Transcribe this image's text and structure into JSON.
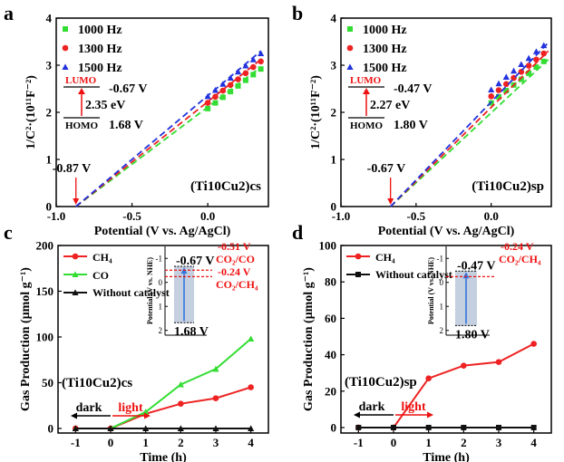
{
  "colors": {
    "f1000": "#33dd33",
    "f1300": "#ee2222",
    "f1500": "#2233dd",
    "ch4": "#ee2222",
    "co": "#33dd33",
    "nocat": "#111111",
    "inset_fill": "#c4cfe0",
    "inset_arrow": "#3377dd",
    "annot_red": "#ee1111",
    "lumo_red": "#ee1111",
    "dark_arrow": "#000000",
    "light_arrow": "#ee1111"
  },
  "chart_data": [
    {
      "panel": "a",
      "type": "scatter",
      "xlabel": "Potential (V vs. Ag/AgCl)",
      "ylabel": "1/C²·(10¹¹F⁻²)",
      "xlim": [
        -1.0,
        0.4
      ],
      "ylim": [
        0,
        4
      ],
      "xticks": [
        "-1.0",
        "-0.5",
        "0.0"
      ],
      "yticks": [
        "0",
        "1",
        "2",
        "3",
        "4"
      ],
      "legend": [
        "1000 Hz",
        "1300 Hz",
        "1500 Hz"
      ],
      "legend_position": "top-left",
      "sample": "(Ti10Cu2)cs",
      "flatband": {
        "label": "-0.87 V",
        "x": -0.87
      },
      "energy": {
        "lumo": "LUMO",
        "lumo_v": "-0.67 V",
        "gap": "2.35 eV",
        "homo": "HOMO",
        "homo_v": "1.68 V"
      },
      "series": [
        {
          "name": "1000 Hz",
          "fit": [
            [
              -0.87,
              0
            ],
            [
              0.35,
              2.96
            ]
          ],
          "points": [
            [
              0.0,
              2.08
            ],
            [
              0.05,
              2.2
            ],
            [
              0.1,
              2.32
            ],
            [
              0.15,
              2.44
            ],
            [
              0.2,
              2.56
            ],
            [
              0.25,
              2.68
            ],
            [
              0.3,
              2.8
            ],
            [
              0.35,
              2.92
            ]
          ]
        },
        {
          "name": "1300 Hz",
          "fit": [
            [
              -0.87,
              0
            ],
            [
              0.35,
              3.12
            ]
          ],
          "points": [
            [
              0.0,
              2.2
            ],
            [
              0.05,
              2.33
            ],
            [
              0.1,
              2.46
            ],
            [
              0.15,
              2.58
            ],
            [
              0.2,
              2.7
            ],
            [
              0.25,
              2.83
            ],
            [
              0.3,
              2.96
            ],
            [
              0.35,
              3.08
            ]
          ]
        },
        {
          "name": "1500 Hz",
          "fit": [
            [
              -0.87,
              0
            ],
            [
              0.35,
              3.3
            ]
          ],
          "points": [
            [
              0.0,
              2.34
            ],
            [
              0.05,
              2.47
            ],
            [
              0.1,
              2.6
            ],
            [
              0.15,
              2.73
            ],
            [
              0.2,
              2.86
            ],
            [
              0.25,
              2.99
            ],
            [
              0.3,
              3.12
            ],
            [
              0.35,
              3.25
            ]
          ]
        }
      ]
    },
    {
      "panel": "b",
      "type": "scatter",
      "xlabel": "Potential (V vs. Ag/AgCl)",
      "ylabel": "1/C²·(10¹¹F⁻²)",
      "xlim": [
        -1.0,
        0.4
      ],
      "ylim": [
        0,
        4
      ],
      "xticks": [
        "-1.0",
        "-0.5",
        "0.0"
      ],
      "yticks": [
        "0",
        "1",
        "2",
        "3",
        "4"
      ],
      "legend": [
        "1000 Hz",
        "1300 Hz",
        "1500 Hz"
      ],
      "legend_position": "top-left",
      "sample": "(Ti10Cu2)sp",
      "flatband": {
        "label": "-0.67 V",
        "x": -0.67
      },
      "energy": {
        "lumo": "LUMO",
        "lumo_v": "-0.47 V",
        "gap": "2.27 eV",
        "homo": "HOMO",
        "homo_v": "1.80 V"
      },
      "series": [
        {
          "name": "1000 Hz",
          "fit": [
            [
              -0.67,
              0
            ],
            [
              0.38,
              3.12
            ]
          ],
          "points": [
            [
              0.0,
              2.2
            ],
            [
              0.05,
              2.33
            ],
            [
              0.1,
              2.46
            ],
            [
              0.15,
              2.58
            ],
            [
              0.2,
              2.7
            ],
            [
              0.25,
              2.83
            ],
            [
              0.3,
              2.96
            ],
            [
              0.35,
              3.08
            ]
          ]
        },
        {
          "name": "1300 Hz",
          "fit": [
            [
              -0.67,
              0
            ],
            [
              0.38,
              3.3
            ]
          ],
          "points": [
            [
              0.0,
              2.34
            ],
            [
              0.05,
              2.47
            ],
            [
              0.1,
              2.6
            ],
            [
              0.15,
              2.73
            ],
            [
              0.2,
              2.86
            ],
            [
              0.25,
              2.99
            ],
            [
              0.3,
              3.12
            ],
            [
              0.35,
              3.25
            ]
          ]
        },
        {
          "name": "1500 Hz",
          "fit": [
            [
              -0.67,
              0
            ],
            [
              0.38,
              3.48
            ]
          ],
          "points": [
            [
              0.0,
              2.48
            ],
            [
              0.05,
              2.61
            ],
            [
              0.1,
              2.75
            ],
            [
              0.15,
              2.88
            ],
            [
              0.2,
              3.02
            ],
            [
              0.25,
              3.15
            ],
            [
              0.3,
              3.29
            ],
            [
              0.35,
              3.42
            ]
          ]
        }
      ]
    },
    {
      "panel": "c",
      "type": "line",
      "xlabel": "Time (h)",
      "ylabel": "Gas Production (μmol g⁻¹)",
      "xlim": [
        -1.5,
        4.5
      ],
      "ylim": [
        -5,
        200
      ],
      "xticks": [
        "-1",
        "0",
        "1",
        "2",
        "3",
        "4"
      ],
      "yticks": [
        "0",
        "50",
        "100",
        "150",
        "200"
      ],
      "legend_position": "top-left",
      "sample": "(Ti10Cu2)cs",
      "dark": "dark",
      "light": "light",
      "series": [
        {
          "name": "CH₄",
          "x": [
            -1,
            0,
            1,
            2,
            3,
            4
          ],
          "values": [
            0,
            0,
            16,
            27,
            33,
            45
          ]
        },
        {
          "name": "CO",
          "x": [
            -1,
            0,
            1,
            2,
            3,
            4
          ],
          "values": [
            0,
            0,
            18,
            48,
            65,
            98
          ]
        },
        {
          "name": "Without catalyst",
          "x": [
            -1,
            0,
            1,
            2,
            3,
            4
          ],
          "values": [
            0,
            0,
            0,
            0,
            0,
            0
          ]
        }
      ],
      "inset": {
        "ylabel": "Potential (V vs. NHE)",
        "ylim": [
          -1.5,
          2.2
        ],
        "yticks": [
          "-1",
          "0",
          "1",
          "2"
        ],
        "lumo": -0.67,
        "homo": 1.68,
        "lumo_label": "-0.67 V",
        "homo_label": "1.68 V",
        "levels": [
          {
            "value": -0.51,
            "label": "-0.51 V",
            "pair": "CO₂/CO"
          },
          {
            "value": -0.24,
            "label": "-0.24 V",
            "pair": "CO₂/CH₄"
          }
        ]
      }
    },
    {
      "panel": "d",
      "type": "line",
      "xlabel": "Time (h)",
      "ylabel": "Gas Production (μmol g⁻¹)",
      "xlim": [
        -1.5,
        4.5
      ],
      "ylim": [
        -3,
        100
      ],
      "xticks": [
        "-1",
        "0",
        "1",
        "2",
        "3",
        "4"
      ],
      "yticks": [
        "0",
        "20",
        "40",
        "60",
        "80",
        "100"
      ],
      "legend_position": "top-left",
      "sample": "(Ti10Cu2)sp",
      "dark": "dark",
      "light": "light",
      "series": [
        {
          "name": "CH₄",
          "x": [
            -1,
            0,
            1,
            2,
            3,
            4
          ],
          "values": [
            0,
            0,
            27,
            34,
            36,
            46
          ]
        },
        {
          "name": "Without catalyst",
          "x": [
            -1,
            0,
            1,
            2,
            3,
            4
          ],
          "values": [
            0,
            0,
            0,
            0,
            0,
            0
          ]
        }
      ],
      "inset": {
        "ylabel": "Potential (V vs. NHE)",
        "ylim": [
          -1.5,
          2.2
        ],
        "yticks": [
          "-1",
          "0",
          "1",
          "2"
        ],
        "lumo": -0.47,
        "homo": 1.8,
        "lumo_label": "-0.47 V",
        "homo_label": "1.80 V",
        "levels": [
          {
            "value": -0.24,
            "label": "-0.24 V",
            "pair": "CO₂/CH₄"
          }
        ]
      }
    }
  ]
}
